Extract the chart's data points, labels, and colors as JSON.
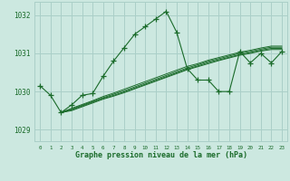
{
  "title": "Graphe pression niveau de la mer (hPa)",
  "background_color": "#cce8e0",
  "grid_color": "#aacfc8",
  "line_color": "#1a6b2a",
  "text_color": "#1a6b2a",
  "xlim": [
    -0.5,
    23.5
  ],
  "ylim": [
    1028.7,
    1032.35
  ],
  "yticks": [
    1029,
    1030,
    1031,
    1032
  ],
  "xticks": [
    0,
    1,
    2,
    3,
    4,
    5,
    6,
    7,
    8,
    9,
    10,
    11,
    12,
    13,
    14,
    15,
    16,
    17,
    18,
    19,
    20,
    21,
    22,
    23
  ],
  "series_jagged": {
    "x": [
      0,
      1,
      2,
      3,
      4,
      5,
      6,
      7,
      8,
      9,
      10,
      11,
      12,
      13,
      14,
      15,
      16,
      17,
      18,
      19,
      20,
      21,
      22,
      23
    ],
    "y": [
      1030.15,
      1029.9,
      1029.45,
      1029.65,
      1029.9,
      1029.95,
      1030.4,
      1030.8,
      1031.15,
      1031.5,
      1031.7,
      1031.9,
      1032.1,
      1031.55,
      1030.6,
      1030.3,
      1030.3,
      1030.0,
      1030.0,
      1031.05,
      1030.75,
      1031.0,
      1030.75,
      1031.05
    ]
  },
  "series_smooth": [
    {
      "x": [
        2,
        3,
        4,
        5,
        6,
        7,
        8,
        9,
        10,
        11,
        12,
        13,
        14,
        15,
        16,
        17,
        18,
        19,
        20,
        21,
        22,
        23
      ],
      "y": [
        1029.45,
        1029.5,
        1029.6,
        1029.7,
        1029.8,
        1029.88,
        1029.97,
        1030.07,
        1030.17,
        1030.27,
        1030.37,
        1030.47,
        1030.57,
        1030.65,
        1030.73,
        1030.81,
        1030.88,
        1030.95,
        1031.0,
        1031.06,
        1031.1,
        1031.1
      ]
    },
    {
      "x": [
        2,
        3,
        4,
        5,
        6,
        7,
        8,
        9,
        10,
        11,
        12,
        13,
        14,
        15,
        16,
        17,
        18,
        19,
        20,
        21,
        22,
        23
      ],
      "y": [
        1029.45,
        1029.52,
        1029.62,
        1029.72,
        1029.82,
        1029.9,
        1029.99,
        1030.09,
        1030.19,
        1030.29,
        1030.39,
        1030.49,
        1030.59,
        1030.67,
        1030.76,
        1030.83,
        1030.9,
        1030.97,
        1031.02,
        1031.08,
        1031.13,
        1031.13
      ]
    },
    {
      "x": [
        2,
        3,
        4,
        5,
        6,
        7,
        8,
        9,
        10,
        11,
        12,
        13,
        14,
        15,
        16,
        17,
        18,
        19,
        20,
        21,
        22,
        23
      ],
      "y": [
        1029.45,
        1029.54,
        1029.64,
        1029.74,
        1029.84,
        1029.93,
        1030.02,
        1030.12,
        1030.22,
        1030.32,
        1030.42,
        1030.52,
        1030.62,
        1030.7,
        1030.79,
        1030.86,
        1030.93,
        1031.0,
        1031.05,
        1031.11,
        1031.16,
        1031.16
      ]
    },
    {
      "x": [
        2,
        3,
        4,
        5,
        6,
        7,
        8,
        9,
        10,
        11,
        12,
        13,
        14,
        15,
        16,
        17,
        18,
        19,
        20,
        21,
        22,
        23
      ],
      "y": [
        1029.45,
        1029.56,
        1029.66,
        1029.76,
        1029.87,
        1029.96,
        1030.06,
        1030.16,
        1030.26,
        1030.36,
        1030.46,
        1030.56,
        1030.66,
        1030.73,
        1030.82,
        1030.89,
        1030.96,
        1031.03,
        1031.08,
        1031.14,
        1031.19,
        1031.19
      ]
    }
  ]
}
